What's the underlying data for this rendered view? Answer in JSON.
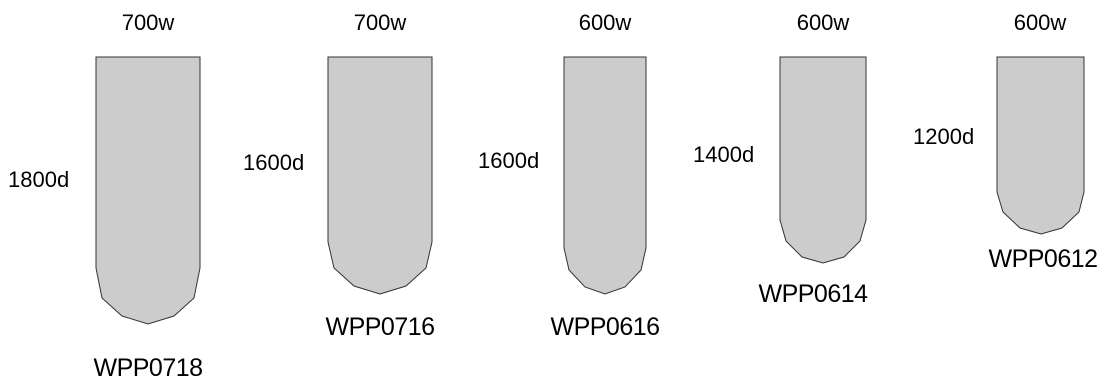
{
  "bags": [
    {
      "code": "WPP0718",
      "width": "700w",
      "depth": "1800d"
    },
    {
      "code": "WPP0716",
      "width": "700w",
      "depth": "1600d"
    },
    {
      "code": "WPP0616",
      "width": "600w",
      "depth": "1600d"
    },
    {
      "code": "WPP0614",
      "width": "600w",
      "depth": "1400d"
    },
    {
      "code": "WPP0612",
      "width": "600w",
      "depth": "1200d"
    }
  ]
}
